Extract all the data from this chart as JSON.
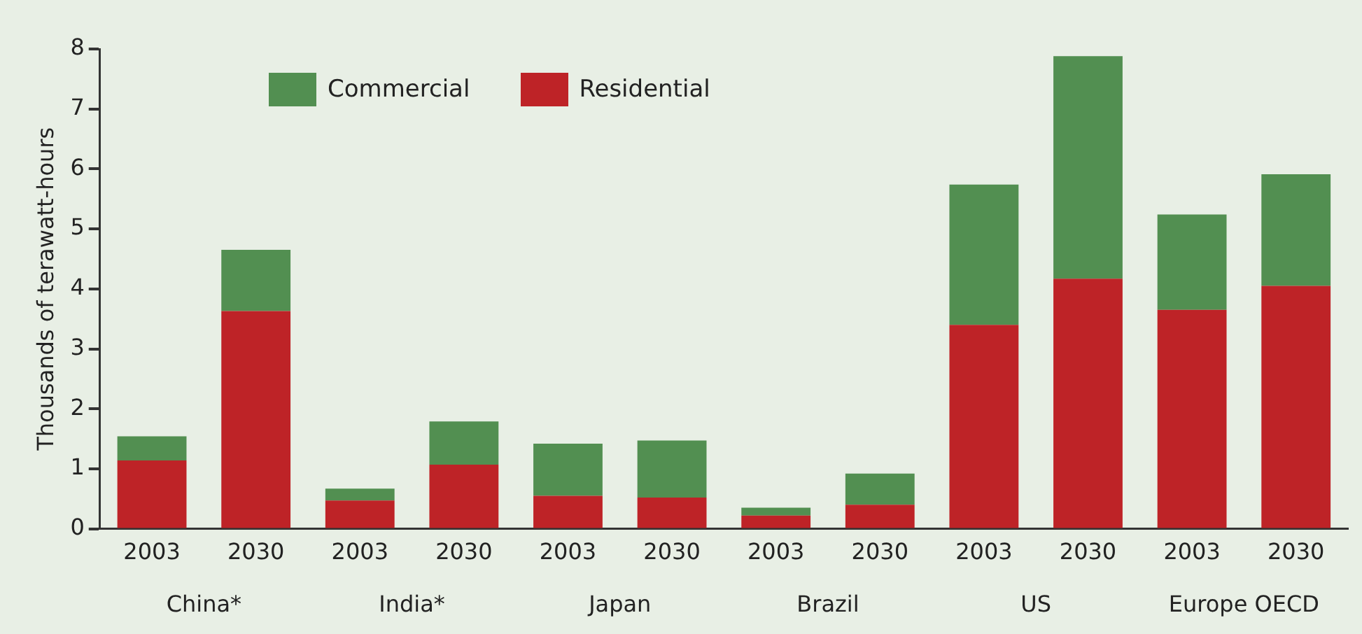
{
  "chart_data": {
    "type": "bar",
    "stacked": true,
    "ylabel": "Thousands of terawatt-hours",
    "categories": [
      "2003",
      "2030",
      "2003",
      "2030",
      "2003",
      "2030",
      "2003",
      "2030",
      "2003",
      "2030",
      "2003",
      "2030"
    ],
    "annotations": [
      "China*",
      "India*",
      "Japan",
      "Brazil",
      "US",
      "Europe OECD"
    ],
    "series": [
      {
        "name": "Residential",
        "color": "#be2327",
        "values": [
          1.14,
          3.63,
          0.47,
          1.07,
          0.55,
          0.52,
          0.22,
          0.4,
          3.4,
          4.17,
          3.65,
          4.05
        ]
      },
      {
        "name": "Commercial",
        "color": "#528f51",
        "values": [
          0.4,
          1.02,
          0.2,
          0.72,
          0.87,
          0.95,
          0.13,
          0.52,
          2.34,
          3.71,
          1.59,
          1.86
        ]
      }
    ],
    "ylim": [
      0,
      8
    ],
    "yticks": [
      0,
      1,
      2,
      3,
      4,
      5,
      6,
      7,
      8
    ],
    "grid": false,
    "legend": "top left"
  }
}
